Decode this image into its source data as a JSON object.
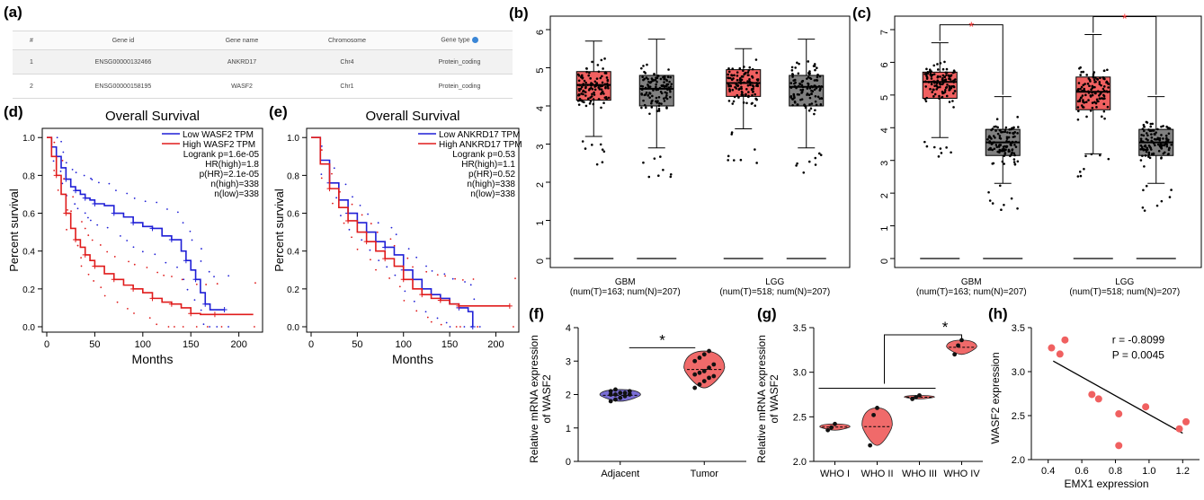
{
  "panel_labels": {
    "a": "(a)",
    "b": "(b)",
    "c": "(c)",
    "d": "(d)",
    "e": "(e)",
    "f": "(f)",
    "g": "(g)",
    "h": "(h)"
  },
  "colors": {
    "tumor": "#f06060",
    "normal": "#808080",
    "low": "#1f1fd6",
    "high": "#e01b1b",
    "violin_adj": "#7b6fd6",
    "violin_tumor": "#f06a6a",
    "star": "#f03030"
  },
  "gene_table": {
    "headers": [
      "#",
      "Gene id",
      "Gene name",
      "Chromosome",
      "Gene type"
    ],
    "rows": [
      [
        "1",
        "ENSG00000132466",
        "ANKRD17",
        "Chr4",
        "Protein_coding"
      ],
      [
        "2",
        "ENSG00000158195",
        "WASF2",
        "Chr1",
        "Protein_coding"
      ]
    ]
  },
  "chart_data": [
    {
      "panel": "b",
      "type": "box",
      "ylim": [
        0,
        6
      ],
      "yticks": [
        "0",
        "1",
        "2",
        "3",
        "4",
        "5",
        "6"
      ],
      "groups": [
        {
          "name": "GBM",
          "sub": "(num(T)=163; num(N)=207)",
          "boxes": [
            {
              "kind": "T",
              "q1": 4.15,
              "median": 4.55,
              "q3": 4.9,
              "wlo": 3.2,
              "whi": 5.7
            },
            {
              "kind": "N",
              "q1": 4.0,
              "median": 4.45,
              "q3": 4.8,
              "wlo": 2.9,
              "whi": 5.75
            }
          ]
        },
        {
          "name": "LGG",
          "sub": "(num(T)=518; num(N)=207)",
          "boxes": [
            {
              "kind": "T",
              "q1": 4.25,
              "median": 4.6,
              "q3": 4.95,
              "wlo": 3.4,
              "whi": 5.5
            },
            {
              "kind": "N",
              "q1": 4.0,
              "median": 4.5,
              "q3": 4.8,
              "wlo": 2.9,
              "whi": 5.75
            }
          ]
        }
      ]
    },
    {
      "panel": "c",
      "type": "box",
      "ylim": [
        0,
        7
      ],
      "yticks": [
        "0",
        "1",
        "2",
        "3",
        "4",
        "5",
        "6",
        "7"
      ],
      "groups": [
        {
          "name": "GBM",
          "sub": "(num(T)=163; num(N)=207)",
          "boxes": [
            {
              "kind": "T",
              "q1": 4.9,
              "median": 5.4,
              "q3": 5.7,
              "wlo": 3.7,
              "whi": 6.6
            },
            {
              "kind": "N",
              "q1": 3.15,
              "median": 3.55,
              "q3": 3.95,
              "wlo": 2.3,
              "whi": 4.95
            }
          ]
        },
        {
          "name": "LGG",
          "sub": "(num(T)=518; num(N)=207)",
          "boxes": [
            {
              "kind": "T",
              "q1": 4.55,
              "median": 5.1,
              "q3": 5.55,
              "wlo": 3.2,
              "whi": 6.85
            },
            {
              "kind": "N",
              "q1": 3.15,
              "median": 3.55,
              "q3": 3.95,
              "wlo": 2.3,
              "whi": 4.95
            }
          ]
        }
      ],
      "significance": "*"
    },
    {
      "panel": "d",
      "type": "line",
      "title": "Overall Survival",
      "xlabel": "Months",
      "ylabel": "Percent survival",
      "xticks": [
        "0",
        "50",
        "100",
        "150",
        "200"
      ],
      "yticks": [
        "0.0",
        "0.2",
        "0.4",
        "0.6",
        "0.8",
        "1.0"
      ],
      "xlim": [
        0,
        220
      ],
      "ylim": [
        0,
        1.02
      ],
      "legend": [
        "Low WASF2 TPM",
        "High WASF2 TPM"
      ],
      "stats": [
        "Logrank p=1.6e-05",
        "HR(high)=1.8",
        "p(HR)=2.1e-05",
        "n(high)=338",
        "n(low)=338"
      ],
      "series": [
        {
          "name": "Low WASF2 TPM",
          "x": [
            0,
            5,
            10,
            15,
            20,
            25,
            30,
            35,
            40,
            45,
            50,
            60,
            70,
            80,
            90,
            100,
            110,
            120,
            130,
            140,
            145,
            150,
            155,
            160,
            165,
            170,
            185
          ],
          "y": [
            1.0,
            0.95,
            0.9,
            0.84,
            0.78,
            0.74,
            0.72,
            0.7,
            0.68,
            0.67,
            0.65,
            0.64,
            0.6,
            0.58,
            0.55,
            0.53,
            0.52,
            0.48,
            0.46,
            0.4,
            0.35,
            0.3,
            0.25,
            0.18,
            0.12,
            0.09,
            0.09
          ]
        },
        {
          "name": "High WASF2 TPM",
          "x": [
            0,
            5,
            10,
            15,
            20,
            25,
            30,
            35,
            40,
            45,
            50,
            60,
            70,
            80,
            90,
            100,
            110,
            120,
            130,
            140,
            150,
            160,
            175,
            215
          ],
          "y": [
            1.0,
            0.9,
            0.8,
            0.7,
            0.6,
            0.52,
            0.46,
            0.42,
            0.38,
            0.35,
            0.32,
            0.28,
            0.25,
            0.22,
            0.2,
            0.18,
            0.15,
            0.13,
            0.12,
            0.1,
            0.07,
            0.065,
            0.065,
            0.065
          ]
        }
      ]
    },
    {
      "panel": "e",
      "type": "line",
      "title": "Overall Survival",
      "xlabel": "Months",
      "ylabel": "Percent survival",
      "xticks": [
        "0",
        "50",
        "100",
        "150",
        "200"
      ],
      "yticks": [
        "0.0",
        "0.2",
        "0.4",
        "0.6",
        "0.8",
        "1.0"
      ],
      "xlim": [
        0,
        220
      ],
      "ylim": [
        0,
        1.02
      ],
      "legend": [
        "Low ANKRD17 TPM",
        "High ANKRD17 TPM"
      ],
      "stats": [
        "Logrank p=0.53",
        "HR(high)=1.1",
        "p(HR)=0.52",
        "n(high)=338",
        "n(low)=338"
      ],
      "series": [
        {
          "name": "Low ANKRD17 TPM",
          "x": [
            0,
            10,
            20,
            30,
            40,
            50,
            60,
            70,
            80,
            90,
            100,
            110,
            120,
            130,
            140,
            150,
            160,
            170,
            175
          ],
          "y": [
            1.0,
            0.88,
            0.76,
            0.67,
            0.6,
            0.55,
            0.5,
            0.45,
            0.42,
            0.38,
            0.3,
            0.25,
            0.2,
            0.17,
            0.15,
            0.12,
            0.1,
            0.08,
            0.0
          ]
        },
        {
          "name": "High ANKRD17 TPM",
          "x": [
            0,
            10,
            20,
            30,
            40,
            50,
            60,
            70,
            80,
            90,
            100,
            110,
            120,
            130,
            140,
            150,
            160,
            175,
            215
          ],
          "y": [
            1.0,
            0.86,
            0.73,
            0.63,
            0.56,
            0.5,
            0.45,
            0.4,
            0.36,
            0.32,
            0.25,
            0.2,
            0.17,
            0.15,
            0.14,
            0.12,
            0.11,
            0.11,
            0.11
          ]
        }
      ]
    },
    {
      "panel": "f",
      "type": "violin",
      "ylabel": [
        "Relative mRNA expression",
        "of WASF2"
      ],
      "ylim": [
        0,
        4
      ],
      "yticks": [
        "0",
        "1",
        "2",
        "3",
        "4"
      ],
      "categories": [
        "Adjacent",
        "Tumor"
      ],
      "values": [
        [
          1.8,
          1.9,
          1.95,
          2.0,
          2.0,
          2.05,
          2.1,
          2.1,
          2.15,
          2.0,
          1.85,
          2.05
        ],
        [
          2.3,
          2.4,
          2.5,
          2.6,
          2.7,
          2.8,
          2.9,
          3.0,
          3.1,
          3.2,
          2.2,
          2.55,
          2.65,
          3.3
        ]
      ],
      "significance": "*"
    },
    {
      "panel": "g",
      "type": "violin",
      "ylabel": [
        "Relative mRNA expression",
        "of WASF2"
      ],
      "ylim": [
        2.0,
        3.5
      ],
      "yticks": [
        "2.0",
        "2.5",
        "3.0",
        "3.5"
      ],
      "categories": [
        "WHO I",
        "WHO II",
        "WHO III",
        "WHO IV"
      ],
      "values": [
        [
          2.35,
          2.38,
          2.42
        ],
        [
          2.18,
          2.52,
          2.6
        ],
        [
          2.7,
          2.72,
          2.74
        ],
        [
          3.2,
          3.3,
          3.36
        ]
      ],
      "significance": "*"
    },
    {
      "panel": "h",
      "type": "scatter",
      "xlabel": "EMX1 expression",
      "ylabel": "WASF2 expression",
      "xlim": [
        0.3,
        1.3
      ],
      "ylim": [
        2.0,
        3.5
      ],
      "xticks": [
        "0.4",
        "0.6",
        "0.8",
        "1.0",
        "1.2"
      ],
      "yticks": [
        "2.0",
        "2.5",
        "3.0",
        "3.5"
      ],
      "x": [
        0.42,
        0.47,
        0.5,
        0.66,
        0.7,
        0.82,
        0.82,
        0.98,
        1.18,
        1.22
      ],
      "y": [
        3.27,
        3.2,
        3.36,
        2.74,
        2.69,
        2.52,
        2.16,
        2.6,
        2.35,
        2.43
      ],
      "fit": {
        "x": [
          0.43,
          1.2
        ],
        "y": [
          3.12,
          2.3
        ]
      },
      "annotation": [
        "r = -0.8099",
        "P = 0.0045"
      ]
    }
  ]
}
